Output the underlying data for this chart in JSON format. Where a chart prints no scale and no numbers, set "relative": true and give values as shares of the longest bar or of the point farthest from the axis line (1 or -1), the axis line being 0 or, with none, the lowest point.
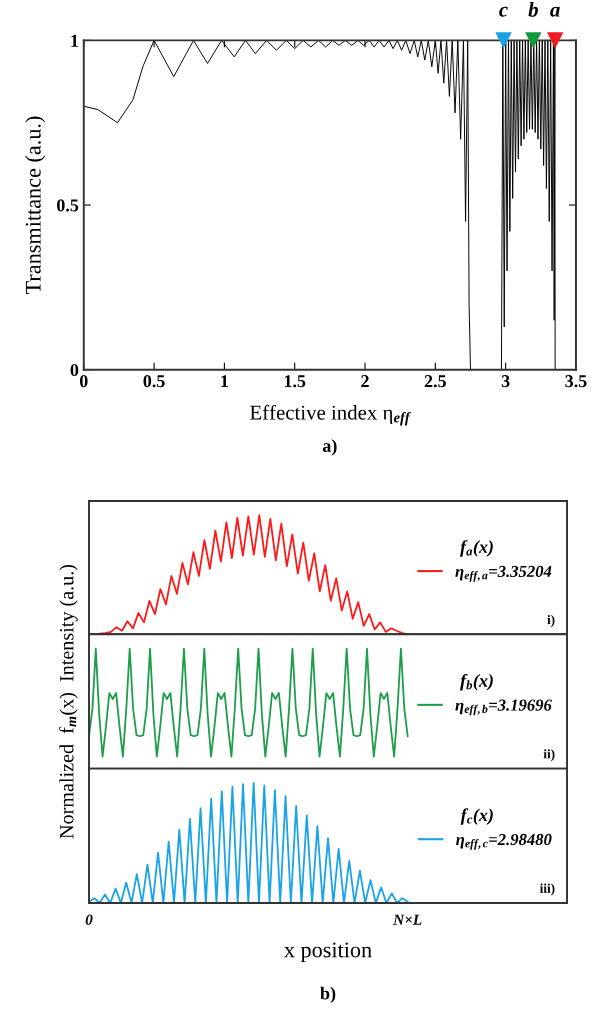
{
  "chart_data": [
    {
      "type": "line",
      "xlabel": "Effective index η$_{eff}$",
      "ylabel": "Transmittance (a.u.)",
      "xlim": [
        0,
        3.5
      ],
      "ylim": [
        0,
        1
      ],
      "xticks": [
        0,
        0.5,
        1,
        1.5,
        2,
        2.5,
        3,
        3.5
      ],
      "yticks": [
        0,
        0.5,
        1
      ],
      "series": [
        {
          "type": "line",
          "color": "#000000",
          "x": [
            0,
            0.1,
            0.24,
            0.35,
            0.42,
            0.5,
            0.64,
            0.78,
            0.88,
            0.98,
            1.07,
            1.15,
            1.22,
            1.3,
            1.37,
            1.44,
            1.5,
            1.56,
            1.615,
            1.67,
            1.72,
            1.77,
            1.815,
            1.86,
            1.905,
            1.95,
            1.99,
            2.03,
            2.065,
            2.1,
            2.135,
            2.17,
            2.2,
            2.23,
            2.26,
            2.29,
            2.32,
            2.35,
            2.375,
            2.4,
            2.425,
            2.45,
            2.475,
            2.5,
            2.52,
            2.54,
            2.56,
            2.58,
            2.6,
            2.62,
            2.64,
            2.66,
            2.68,
            2.7,
            2.715,
            2.73,
            2.74,
            2.75,
            2.97,
            2.98,
            2.99,
            3.0,
            3.01,
            3.02,
            3.03,
            3.04,
            3.05,
            3.06,
            3.07,
            3.08,
            3.09,
            3.1,
            3.11,
            3.12,
            3.13,
            3.14,
            3.15,
            3.16,
            3.17,
            3.18,
            3.19,
            3.2,
            3.21,
            3.22,
            3.23,
            3.24,
            3.25,
            3.26,
            3.27,
            3.28,
            3.29,
            3.3,
            3.31,
            3.32,
            3.33,
            3.34,
            3.345,
            3.35,
            3.352
          ],
          "values": [
            0.8,
            0.79,
            0.75,
            0.82,
            0.92,
            1,
            0.89,
            1,
            0.93,
            1,
            0.95,
            1,
            0.96,
            1,
            0.97,
            1,
            0.975,
            1,
            0.98,
            1,
            0.98,
            1,
            0.985,
            1,
            0.985,
            1,
            0.985,
            1,
            0.98,
            1,
            0.98,
            1,
            0.975,
            1,
            0.97,
            1,
            0.96,
            1,
            0.95,
            1,
            0.94,
            1,
            0.92,
            1,
            0.9,
            1,
            0.87,
            1,
            0.83,
            1,
            0.78,
            1,
            0.7,
            1,
            0.45,
            1,
            0.2,
            0,
            0,
            1,
            0.13,
            1,
            0.3,
            1,
            0.42,
            1,
            0.52,
            1,
            0.6,
            1,
            0.64,
            1,
            0.68,
            1,
            0.7,
            1,
            0.72,
            1,
            0.73,
            1,
            0.73,
            1,
            0.72,
            1,
            0.7,
            1,
            0.67,
            1,
            0.62,
            1,
            0.55,
            1,
            0.45,
            1,
            0.3,
            1,
            0.15,
            1,
            0
          ]
        },
        {
          "type": "scatter",
          "marker": "triangle",
          "x": [
            2.9848,
            3.19696,
            3.35204
          ],
          "values": [
            1,
            1,
            1
          ],
          "colors": [
            "#1aa0e6",
            "#12993c",
            "#ee1c24"
          ]
        }
      ],
      "annotations": [
        {
          "text": "c",
          "x": 2.9848,
          "y": 1
        },
        {
          "text": "b",
          "x": 3.19696,
          "y": 1
        },
        {
          "text": "a",
          "x": 3.35204,
          "y": 1
        },
        "a)"
      ]
    },
    {
      "type": "line",
      "relative": true,
      "legend": "right",
      "legend_title": "f$_{a}$(x)",
      "categories": [
        null,
        null,
        null,
        null,
        null,
        null,
        null,
        null,
        null,
        null,
        null,
        null,
        null,
        null,
        null,
        null,
        null,
        null,
        null,
        null,
        null,
        null,
        null,
        null,
        null,
        null,
        null,
        null,
        null,
        null,
        null,
        null,
        null,
        null,
        null,
        null,
        null,
        null,
        null,
        null,
        null,
        null,
        null,
        null,
        null,
        null,
        null,
        null,
        null,
        null,
        null,
        null,
        null,
        null,
        null,
        null,
        null,
        null,
        null
      ],
      "series": [
        {
          "name": "η$_{eff,a}$=3.35204",
          "color": "#ff1a1a",
          "values": [
            null,
            null,
            0.005,
            0.01,
            0.02,
            0.06,
            0.03,
            0.11,
            0.05,
            0.18,
            0.1,
            0.28,
            0.17,
            0.38,
            0.25,
            0.49,
            0.34,
            0.6,
            0.42,
            0.69,
            0.49,
            0.79,
            0.55,
            0.87,
            0.61,
            0.94,
            0.64,
            0.98,
            0.66,
            0.99,
            0.67,
            1.0,
            0.65,
            0.97,
            0.62,
            0.93,
            0.57,
            0.84,
            0.51,
            0.77,
            0.45,
            0.68,
            0.36,
            0.58,
            0.28,
            0.47,
            0.2,
            0.36,
            0.13,
            0.27,
            0.07,
            0.17,
            0.04,
            0.1,
            0.02,
            0.05,
            0.03,
            0.01,
            0
          ]
        }
      ],
      "annotations": [
        "i)"
      ]
    },
    {
      "type": "line",
      "relative": true,
      "legend": "right",
      "legend_title": "f$_{b}$(x)",
      "ylabel": "Normalized  f$_{m}$(x)  Intensity (a.u.)",
      "categories": [
        null,
        null,
        null,
        null,
        null,
        null,
        null,
        null,
        null,
        null,
        null,
        null,
        null,
        null,
        null,
        null,
        null,
        null,
        null,
        null,
        null,
        null,
        null,
        null,
        null,
        null,
        null,
        null,
        null,
        null,
        null,
        null,
        null,
        null,
        null,
        null,
        null,
        null,
        null,
        null,
        null,
        null,
        null,
        null,
        null,
        null,
        null,
        null,
        null,
        null,
        null,
        null,
        null,
        null,
        null,
        null,
        null,
        null,
        null,
        null,
        null,
        null,
        null,
        null,
        null,
        null,
        null,
        null,
        null,
        null,
        null,
        null,
        null,
        null,
        null,
        null,
        null,
        null,
        null,
        null,
        null,
        null,
        null,
        null,
        null,
        null,
        null,
        null,
        null,
        null,
        null,
        null,
        null,
        null,
        null
      ],
      "series": [
        {
          "name": "η$_{eff,b}$=3.19696",
          "color": "#1e9e4a",
          "values": [
            0.27,
            0.5,
            1,
            0.45,
            0.1,
            0.35,
            0.63,
            0.58,
            0.63,
            0.35,
            0.1,
            0.5,
            1,
            0.5,
            0.28,
            0.27,
            0.28,
            0.5,
            1,
            0.45,
            0.1,
            0.35,
            0.63,
            0.58,
            0.63,
            0.35,
            0.1,
            0.5,
            1,
            0.5,
            0.28,
            0.27,
            0.28,
            0.5,
            1,
            0.45,
            0.1,
            0.35,
            0.63,
            0.58,
            0.63,
            0.35,
            0.1,
            0.5,
            1,
            0.5,
            0.28,
            0.27,
            0.28,
            0.5,
            1,
            0.45,
            0.1,
            0.35,
            0.63,
            0.58,
            0.63,
            0.35,
            0.1,
            0.5,
            1,
            0.5,
            0.28,
            0.27,
            0.28,
            0.5,
            1,
            0.45,
            0.1,
            0.35,
            0.63,
            0.58,
            0.63,
            0.35,
            0.1,
            0.5,
            1,
            0.5,
            0.28,
            0.27,
            0.28,
            0.5,
            1,
            0.45,
            0.1,
            0.35,
            0.63,
            0.58,
            0.63,
            0.35,
            0.1,
            0.5,
            1,
            0.5,
            0.27
          ]
        }
      ],
      "annotations": [
        "ii)"
      ]
    },
    {
      "type": "line",
      "relative": true,
      "legend": "right",
      "legend_title": "f$_{c}$(x)",
      "xlabel": "x position",
      "categories": [
        "0",
        null,
        null,
        null,
        null,
        null,
        null,
        null,
        null,
        null,
        null,
        null,
        null,
        null,
        null,
        null,
        null,
        null,
        null,
        null,
        null,
        null,
        null,
        null,
        null,
        null,
        null,
        null,
        null,
        null,
        null,
        null,
        null,
        null,
        null,
        null,
        null,
        null,
        null,
        null,
        null,
        null,
        null,
        null,
        null,
        null,
        null,
        null,
        null,
        null,
        null,
        null,
        null,
        null,
        null,
        null,
        null,
        null,
        null,
        null,
        "N×L"
      ],
      "series": [
        {
          "name": "η$_{eff,c}$=2.98480",
          "color": "#1aa3e8",
          "values": [
            0.01,
            0.04,
            0,
            0.07,
            0,
            0.12,
            0,
            0.17,
            0,
            0.24,
            0,
            0.32,
            0,
            0.42,
            0,
            0.51,
            0,
            0.61,
            0,
            0.7,
            0,
            0.79,
            0,
            0.87,
            0,
            0.93,
            0,
            0.97,
            0,
            0.99,
            0,
            1,
            0,
            0.98,
            0,
            0.94,
            0,
            0.89,
            0,
            0.81,
            0,
            0.73,
            0,
            0.64,
            0,
            0.54,
            0,
            0.45,
            0,
            0.35,
            0,
            0.27,
            0,
            0.19,
            0,
            0.13,
            0,
            0.08,
            0,
            0.04,
            0.01
          ]
        }
      ],
      "annotations": [
        "iii)",
        "b)"
      ]
    }
  ]
}
